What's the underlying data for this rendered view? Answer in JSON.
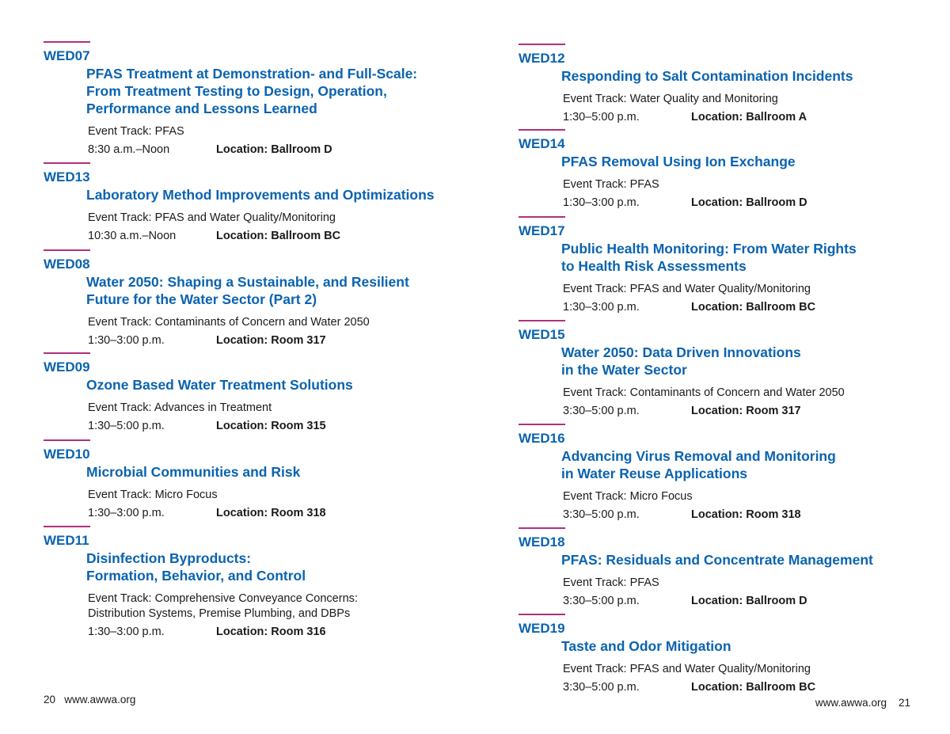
{
  "colors": {
    "accent_blue": "#0a63b0",
    "rule_magenta": "#b0307a"
  },
  "left_page": {
    "entries": [
      {
        "code": "WED07",
        "title": "PFAS Treatment at Demonstration- and Full-Scale:\nFrom Treatment Testing to Design, Operation,\nPerformance and Lessons Learned",
        "track": "Event Track: PFAS",
        "time": "8:30 a.m.–Noon",
        "location": "Location: Ballroom D"
      },
      {
        "code": "WED13",
        "title": "Laboratory Method Improvements and Optimizations",
        "track": "Event Track: PFAS and Water Quality/Monitoring",
        "time": "10:30 a.m.–Noon",
        "location": "Location: Ballroom BC"
      },
      {
        "code": "WED08",
        "title": "Water 2050: Shaping a Sustainable, and Resilient\nFuture for the Water Sector (Part 2)",
        "track": "Event Track: Contaminants of Concern and Water 2050",
        "time": "1:30–3:00 p.m.",
        "location": "Location: Room 317"
      },
      {
        "code": "WED09",
        "title": "Ozone Based Water Treatment Solutions",
        "track": "Event Track: Advances in Treatment",
        "time": "1:30–5:00 p.m.",
        "location": "Location: Room 315"
      },
      {
        "code": "WED10",
        "title": "Microbial Communities and Risk",
        "track": "Event Track: Micro Focus",
        "time": "1:30–3:00 p.m.",
        "location": "Location: Room 318"
      },
      {
        "code": "WED11",
        "title": "Disinfection Byproducts:\nFormation, Behavior, and Control",
        "track": "Event Track: Comprehensive Conveyance Concerns:\nDistribution Systems, Premise Plumbing, and DBPs",
        "time": "1:30–3:00 p.m.",
        "location": "Location: Room 316"
      }
    ],
    "footer": {
      "page_number": "20",
      "url": "www.awwa.org"
    }
  },
  "right_page": {
    "entries": [
      {
        "code": "WED12",
        "title": "Responding to Salt Contamination Incidents",
        "track": "Event Track: Water Quality and Monitoring",
        "time": "1:30–5:00 p.m.",
        "location": "Location: Ballroom A"
      },
      {
        "code": "WED14",
        "title": "PFAS Removal Using Ion Exchange",
        "track": "Event Track: PFAS",
        "time": "1:30–3:00 p.m.",
        "location": "Location: Ballroom D"
      },
      {
        "code": "WED17",
        "title": "Public Health Monitoring: From Water Rights\nto Health Risk Assessments",
        "track": "Event Track: PFAS and Water Quality/Monitoring",
        "time": "1:30–3:00 p.m.",
        "location": "Location: Ballroom BC"
      },
      {
        "code": "WED15",
        "title": "Water 2050: Data Driven Innovations\nin the Water Sector",
        "track": "Event Track: Contaminants of Concern and Water 2050",
        "time": "3:30–5:00 p.m.",
        "location": "Location: Room 317"
      },
      {
        "code": "WED16",
        "title": "Advancing Virus Removal and Monitoring\nin Water Reuse Applications",
        "track": "Event Track: Micro Focus",
        "time": "3:30–5:00 p.m.",
        "location": "Location: Room 318"
      },
      {
        "code": "WED18",
        "title": "PFAS: Residuals and Concentrate Management",
        "track": "Event Track: PFAS",
        "time": "3:30–5:00 p.m.",
        "location": "Location: Ballroom D"
      },
      {
        "code": "WED19",
        "title": "Taste and Odor Mitigation",
        "track": "Event Track: PFAS and Water Quality/Monitoring",
        "time": "3:30–5:00 p.m.",
        "location": "Location: Ballroom BC"
      }
    ],
    "footer": {
      "page_number": "21",
      "url": "www.awwa.org"
    }
  }
}
